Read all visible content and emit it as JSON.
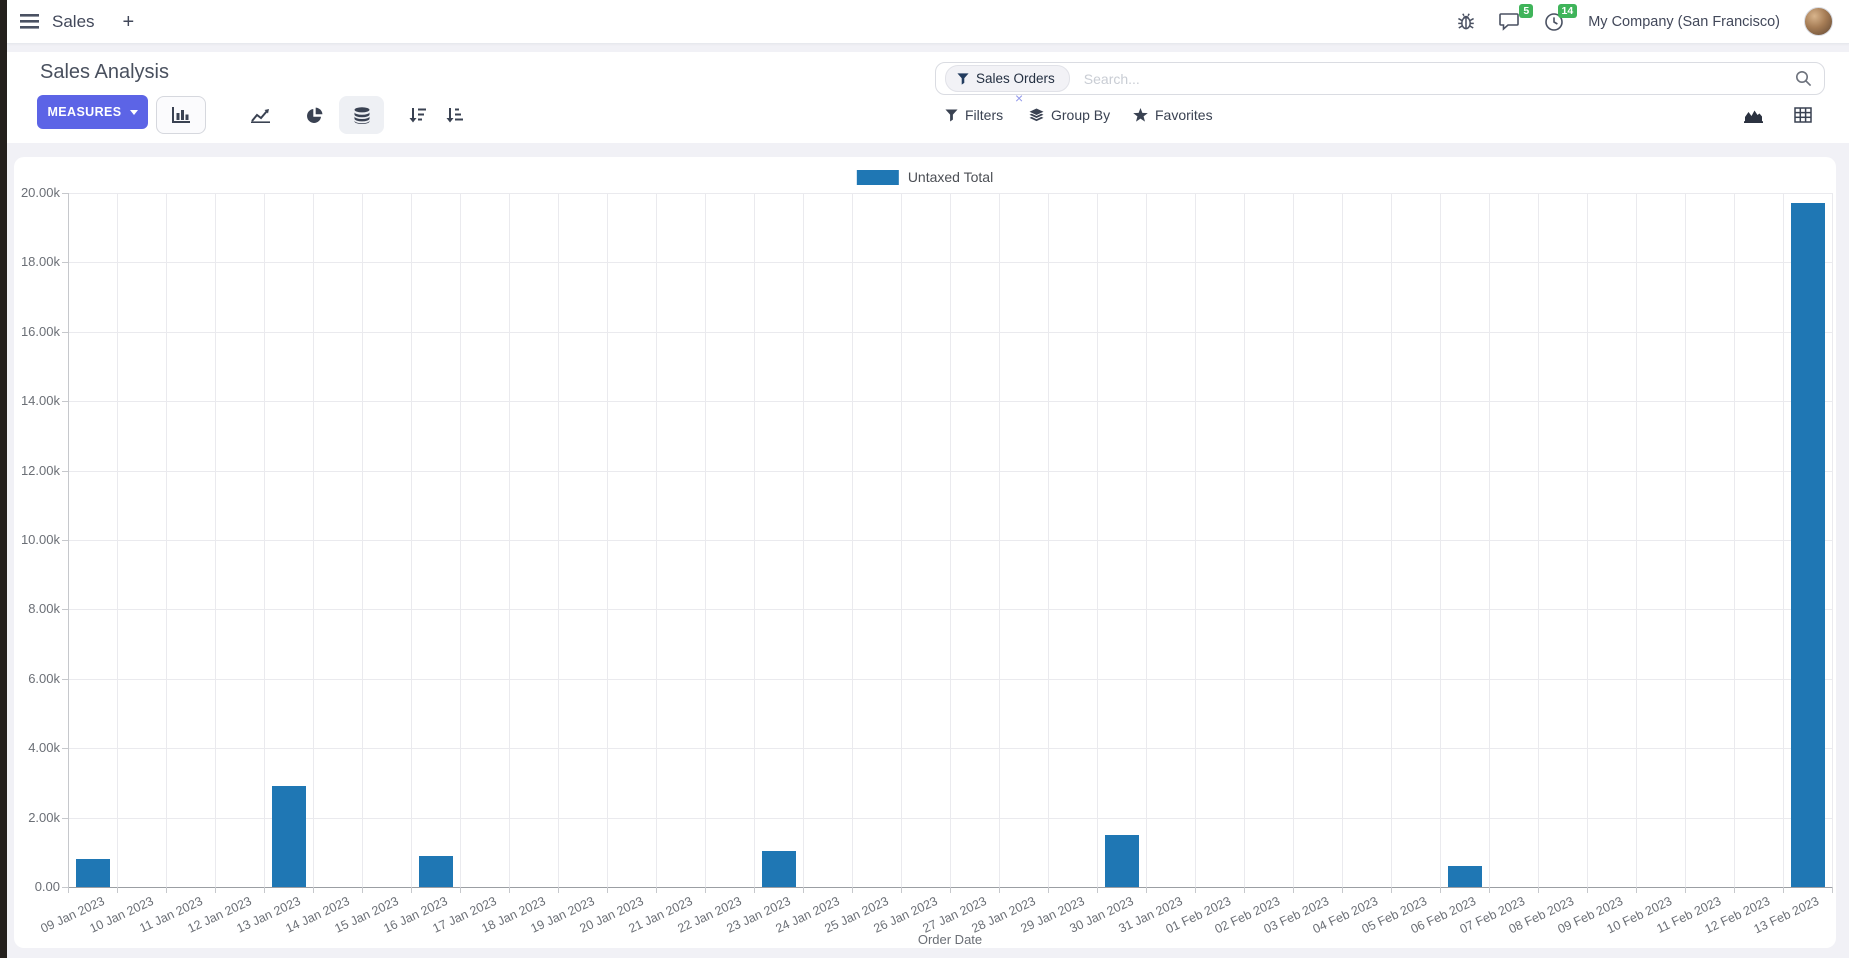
{
  "navbar": {
    "app_name": "Sales",
    "plus": "+",
    "messages_badge": "5",
    "activities_badge": "14",
    "company": "My Company (San Francisco)"
  },
  "control_panel": {
    "title": "Sales Analysis",
    "measures_label": "MEASURES",
    "search": {
      "facet": "Sales Orders",
      "facet_remove": "×",
      "placeholder": "Search..."
    },
    "filters_label": "Filters",
    "group_by_label": "Group By",
    "favorites_label": "Favorites"
  },
  "icons": {
    "chart_type_buttons": [
      "bar-chart",
      "line-chart",
      "pie-chart",
      "stacked",
      "sort-descending",
      "sort-ascending"
    ],
    "view_switcher": [
      "graph-view",
      "pivot-view"
    ]
  },
  "colors": {
    "primary_button": "#5C64E6",
    "bar": "#1f77b4",
    "badge_green": "#3fb45a"
  },
  "chart_data": {
    "type": "bar",
    "title": "",
    "xlabel": "Order Date",
    "ylabel": "",
    "ylim": [
      0,
      20000
    ],
    "grid": true,
    "legend_position": "top",
    "y_tick_labels": [
      "0.00",
      "2.00k",
      "4.00k",
      "6.00k",
      "8.00k",
      "10.00k",
      "12.00k",
      "14.00k",
      "16.00k",
      "18.00k",
      "20.00k"
    ],
    "categories": [
      "09 Jan 2023",
      "10 Jan 2023",
      "11 Jan 2023",
      "12 Jan 2023",
      "13 Jan 2023",
      "14 Jan 2023",
      "15 Jan 2023",
      "16 Jan 2023",
      "17 Jan 2023",
      "18 Jan 2023",
      "19 Jan 2023",
      "20 Jan 2023",
      "21 Jan 2023",
      "22 Jan 2023",
      "23 Jan 2023",
      "24 Jan 2023",
      "25 Jan 2023",
      "26 Jan 2023",
      "27 Jan 2023",
      "28 Jan 2023",
      "29 Jan 2023",
      "30 Jan 2023",
      "31 Jan 2023",
      "01 Feb 2023",
      "02 Feb 2023",
      "03 Feb 2023",
      "04 Feb 2023",
      "05 Feb 2023",
      "06 Feb 2023",
      "07 Feb 2023",
      "08 Feb 2023",
      "09 Feb 2023",
      "10 Feb 2023",
      "11 Feb 2023",
      "12 Feb 2023",
      "13 Feb 2023"
    ],
    "series": [
      {
        "name": "Untaxed Total",
        "color": "#1f77b4",
        "values": [
          800,
          0,
          0,
          0,
          2900,
          0,
          0,
          900,
          0,
          0,
          0,
          0,
          0,
          0,
          1050,
          0,
          0,
          0,
          0,
          0,
          0,
          1500,
          0,
          0,
          0,
          0,
          0,
          0,
          600,
          0,
          0,
          0,
          0,
          0,
          0,
          19700
        ]
      }
    ]
  }
}
